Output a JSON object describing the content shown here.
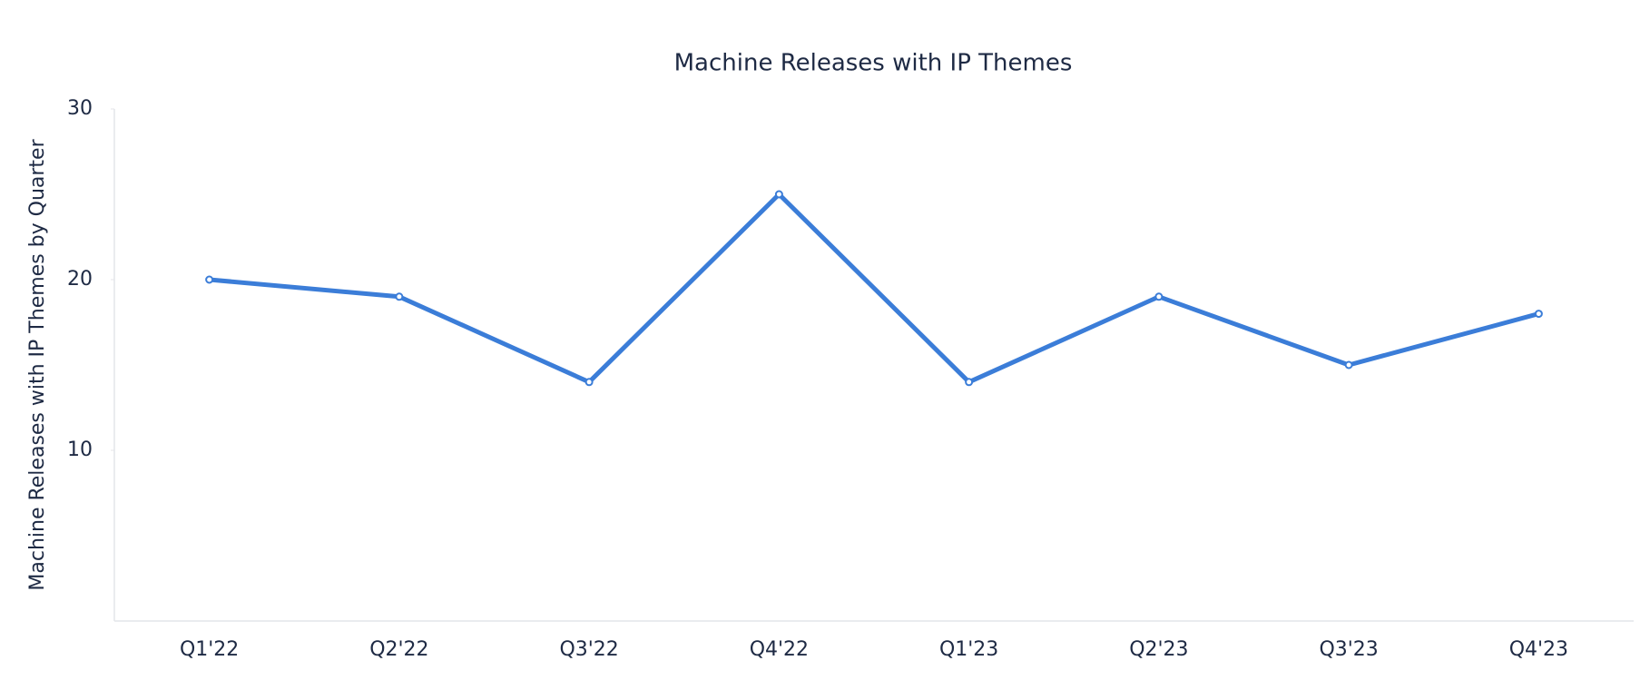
{
  "chart_data": {
    "type": "line",
    "title": "Machine Releases with IP Themes",
    "y_label": "Machine Releases with IP Themes by Quarter",
    "categories": [
      "Q1'22",
      "Q2'22",
      "Q3'22",
      "Q4'22",
      "Q1'23",
      "Q2'23",
      "Q3'23",
      "Q4'23"
    ],
    "series": [
      {
        "name": "Machine Releases with IP Themes",
        "color": "#3b7dd8",
        "values": [
          20,
          19,
          14,
          25,
          14,
          19,
          15,
          18
        ]
      }
    ],
    "ylim": [
      0,
      30
    ],
    "yticks": [
      10,
      20,
      30
    ],
    "grid": false
  }
}
